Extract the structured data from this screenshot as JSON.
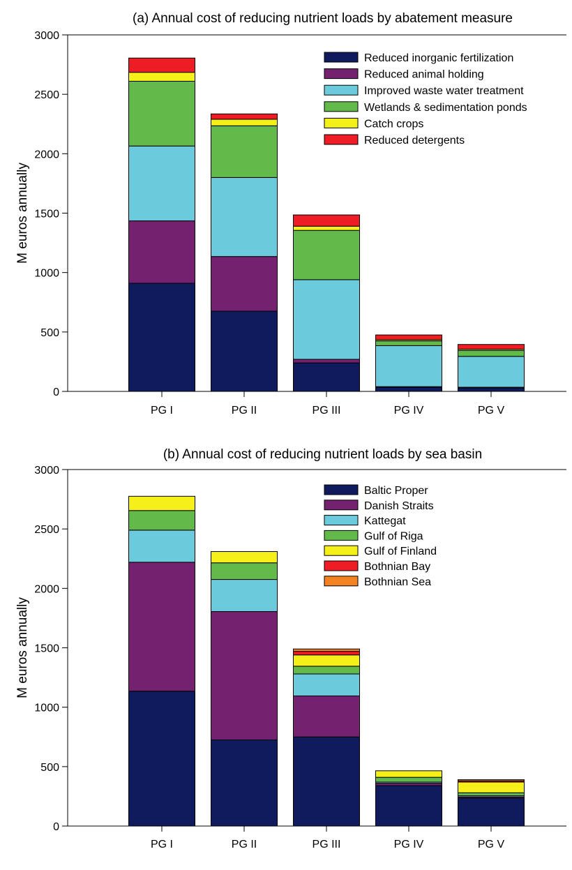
{
  "colors": {
    "navy": "#0f1b5c",
    "purple": "#74226f",
    "cyan": "#6bcbdc",
    "green": "#63b94a",
    "yellow": "#f5f01a",
    "red": "#ee1c24",
    "orange": "#f58220"
  },
  "chart_data": [
    {
      "type": "bar",
      "stacked": true,
      "title": "(a) Annual cost of reducing nutrient loads by abatement measure",
      "xlabel": "",
      "ylabel": "M euros annually",
      "ylim": [
        0,
        3000
      ],
      "yticks": [
        0,
        500,
        1000,
        1500,
        2000,
        2500,
        3000
      ],
      "grid": false,
      "legend": "top-right",
      "categories": [
        "PG I",
        "PG II",
        "PG III",
        "PG IV",
        "PG V"
      ],
      "series": [
        {
          "name": "Reduced inorganic fertilization",
          "color": "#0f1b5c",
          "values": [
            910,
            675,
            240,
            35,
            30
          ]
        },
        {
          "name": "Reduced animal holding",
          "color": "#74226f",
          "values": [
            525,
            460,
            30,
            5,
            5
          ]
        },
        {
          "name": "Improved waste water treatment",
          "color": "#6bcbdc",
          "values": [
            630,
            665,
            670,
            345,
            260
          ]
        },
        {
          "name": "Wetlands & sedimentation ponds",
          "color": "#63b94a",
          "values": [
            545,
            435,
            415,
            40,
            50
          ]
        },
        {
          "name": "Catch crops",
          "color": "#f5f01a",
          "values": [
            75,
            55,
            35,
            10,
            10
          ]
        },
        {
          "name": "Reduced detergents",
          "color": "#ee1c24",
          "values": [
            120,
            45,
            95,
            40,
            40
          ]
        }
      ]
    },
    {
      "type": "bar",
      "stacked": true,
      "title": "(b) Annual cost of reducing nutrient loads by sea basin",
      "xlabel": "",
      "ylabel": "M euros annually",
      "ylim": [
        0,
        3000
      ],
      "yticks": [
        0,
        500,
        1000,
        1500,
        2000,
        2500,
        3000
      ],
      "grid": false,
      "legend": "top-right",
      "categories": [
        "PG I",
        "PG II",
        "PG III",
        "PG IV",
        "PG V"
      ],
      "series": [
        {
          "name": "Baltic Proper",
          "color": "#0f1b5c",
          "values": [
            1135,
            725,
            750,
            340,
            235
          ]
        },
        {
          "name": "Danish Straits",
          "color": "#74226f",
          "values": [
            1085,
            1080,
            345,
            20,
            10
          ]
        },
        {
          "name": "Kattegat",
          "color": "#6bcbdc",
          "values": [
            270,
            270,
            185,
            10,
            10
          ]
        },
        {
          "name": "Gulf of Riga",
          "color": "#63b94a",
          "values": [
            165,
            140,
            65,
            40,
            25
          ]
        },
        {
          "name": "Gulf of Finland",
          "color": "#f5f01a",
          "values": [
            120,
            95,
            95,
            55,
            90
          ]
        },
        {
          "name": "Bothnian Bay",
          "color": "#ee1c24",
          "values": [
            0,
            0,
            30,
            0,
            10
          ]
        },
        {
          "name": "Bothnian Sea",
          "color": "#f58220",
          "values": [
            0,
            0,
            20,
            0,
            10
          ]
        }
      ]
    }
  ]
}
